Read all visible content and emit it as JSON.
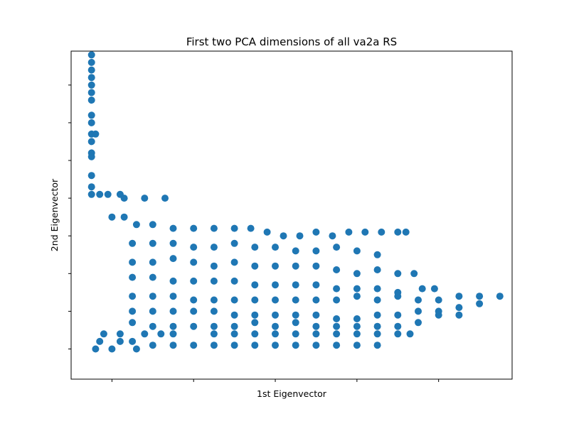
{
  "chart_data": {
    "type": "scatter",
    "title": "First two PCA dimensions of all va2a RS",
    "xlabel": "1st Eigenvector",
    "ylabel": "2nd Eigenvector",
    "xlim": [
      -1.0,
      9.8
    ],
    "ylim": [
      -0.8,
      7.9
    ],
    "xticks": [
      0,
      2,
      4,
      6,
      8
    ],
    "yticks": [
      0,
      1,
      2,
      3,
      4,
      5,
      6,
      7,
      8
    ],
    "tick_labels_visible": false,
    "grid": false,
    "legend": "none",
    "marker_color": "#1f77b4",
    "series": [
      {
        "values_note_omitted": false,
        "points": [
          [
            -0.5,
            7.8
          ],
          [
            -0.5,
            7.6
          ],
          [
            -0.5,
            7.4
          ],
          [
            -0.5,
            7.2
          ],
          [
            -0.5,
            7.0
          ],
          [
            -0.5,
            6.8
          ],
          [
            -0.5,
            6.6
          ],
          [
            -0.5,
            6.2
          ],
          [
            -0.5,
            6.0
          ],
          [
            -0.5,
            5.7
          ],
          [
            -0.5,
            5.5
          ],
          [
            -0.4,
            5.7
          ],
          [
            -0.5,
            5.2
          ],
          [
            -0.5,
            5.1
          ],
          [
            -0.5,
            4.6
          ],
          [
            -0.5,
            4.3
          ],
          [
            -0.5,
            4.1
          ],
          [
            -0.3,
            4.1
          ],
          [
            -0.1,
            4.1
          ],
          [
            0.2,
            4.1
          ],
          [
            0.3,
            4.0
          ],
          [
            0.8,
            4.0
          ],
          [
            1.3,
            4.0
          ],
          [
            0.0,
            3.5
          ],
          [
            0.3,
            3.5
          ],
          [
            0.6,
            3.3
          ],
          [
            1.0,
            3.3
          ],
          [
            1.5,
            3.2
          ],
          [
            2.0,
            3.2
          ],
          [
            2.5,
            3.2
          ],
          [
            3.0,
            3.2
          ],
          [
            3.4,
            3.2
          ],
          [
            3.8,
            3.1
          ],
          [
            4.2,
            3.0
          ],
          [
            4.6,
            3.0
          ],
          [
            5.0,
            3.1
          ],
          [
            5.4,
            3.0
          ],
          [
            5.8,
            3.1
          ],
          [
            6.2,
            3.1
          ],
          [
            6.6,
            3.1
          ],
          [
            7.0,
            3.1
          ],
          [
            7.2,
            3.1
          ],
          [
            0.5,
            2.8
          ],
          [
            1.0,
            2.8
          ],
          [
            1.5,
            2.8
          ],
          [
            2.0,
            2.7
          ],
          [
            2.5,
            2.7
          ],
          [
            3.0,
            2.8
          ],
          [
            3.5,
            2.7
          ],
          [
            4.0,
            2.7
          ],
          [
            4.5,
            2.6
          ],
          [
            5.0,
            2.6
          ],
          [
            5.5,
            2.7
          ],
          [
            6.0,
            2.6
          ],
          [
            6.5,
            2.5
          ],
          [
            0.5,
            2.3
          ],
          [
            1.0,
            2.3
          ],
          [
            1.5,
            2.4
          ],
          [
            2.0,
            2.3
          ],
          [
            2.5,
            2.2
          ],
          [
            3.0,
            2.3
          ],
          [
            3.5,
            2.2
          ],
          [
            4.0,
            2.2
          ],
          [
            4.5,
            2.2
          ],
          [
            5.0,
            2.2
          ],
          [
            5.5,
            2.1
          ],
          [
            6.0,
            2.0
          ],
          [
            6.5,
            2.1
          ],
          [
            7.0,
            2.0
          ],
          [
            7.4,
            2.0
          ],
          [
            0.5,
            1.9
          ],
          [
            1.0,
            1.9
          ],
          [
            1.5,
            1.8
          ],
          [
            2.0,
            1.8
          ],
          [
            2.5,
            1.8
          ],
          [
            3.0,
            1.8
          ],
          [
            3.5,
            1.7
          ],
          [
            4.0,
            1.7
          ],
          [
            4.5,
            1.7
          ],
          [
            5.0,
            1.7
          ],
          [
            5.5,
            1.6
          ],
          [
            6.0,
            1.6
          ],
          [
            6.5,
            1.6
          ],
          [
            7.0,
            1.5
          ],
          [
            7.6,
            1.6
          ],
          [
            7.9,
            1.6
          ],
          [
            0.5,
            1.4
          ],
          [
            1.0,
            1.4
          ],
          [
            1.5,
            1.4
          ],
          [
            2.0,
            1.3
          ],
          [
            2.5,
            1.3
          ],
          [
            3.0,
            1.3
          ],
          [
            3.5,
            1.3
          ],
          [
            4.0,
            1.3
          ],
          [
            4.5,
            1.3
          ],
          [
            5.0,
            1.3
          ],
          [
            5.5,
            1.3
          ],
          [
            6.0,
            1.4
          ],
          [
            6.5,
            1.3
          ],
          [
            7.0,
            1.4
          ],
          [
            7.5,
            1.3
          ],
          [
            8.0,
            1.3
          ],
          [
            8.5,
            1.4
          ],
          [
            9.0,
            1.4
          ],
          [
            9.5,
            1.4
          ],
          [
            0.5,
            1.0
          ],
          [
            1.0,
            1.0
          ],
          [
            1.5,
            1.0
          ],
          [
            2.0,
            1.0
          ],
          [
            2.5,
            1.0
          ],
          [
            3.0,
            0.9
          ],
          [
            3.5,
            0.9
          ],
          [
            4.0,
            0.9
          ],
          [
            4.5,
            0.9
          ],
          [
            5.0,
            0.9
          ],
          [
            5.5,
            0.8
          ],
          [
            6.0,
            0.8
          ],
          [
            6.5,
            0.9
          ],
          [
            7.0,
            0.9
          ],
          [
            7.5,
            1.0
          ],
          [
            8.0,
            1.0
          ],
          [
            8.5,
            1.1
          ],
          [
            9.0,
            1.2
          ],
          [
            0.5,
            0.7
          ],
          [
            1.0,
            0.6
          ],
          [
            1.5,
            0.6
          ],
          [
            2.0,
            0.6
          ],
          [
            2.5,
            0.6
          ],
          [
            3.0,
            0.6
          ],
          [
            3.5,
            0.7
          ],
          [
            4.0,
            0.6
          ],
          [
            4.5,
            0.7
          ],
          [
            5.0,
            0.6
          ],
          [
            5.5,
            0.6
          ],
          [
            6.0,
            0.6
          ],
          [
            6.5,
            0.6
          ],
          [
            7.0,
            0.6
          ],
          [
            7.5,
            0.7
          ],
          [
            8.0,
            0.9
          ],
          [
            8.5,
            0.9
          ],
          [
            -0.2,
            0.4
          ],
          [
            0.2,
            0.4
          ],
          [
            0.8,
            0.4
          ],
          [
            1.2,
            0.4
          ],
          [
            1.5,
            0.4
          ],
          [
            2.5,
            0.4
          ],
          [
            3.0,
            0.4
          ],
          [
            3.5,
            0.4
          ],
          [
            4.0,
            0.4
          ],
          [
            4.5,
            0.4
          ],
          [
            5.0,
            0.4
          ],
          [
            5.5,
            0.4
          ],
          [
            6.0,
            0.4
          ],
          [
            6.5,
            0.4
          ],
          [
            7.0,
            0.4
          ],
          [
            7.3,
            0.4
          ],
          [
            -0.3,
            0.2
          ],
          [
            0.2,
            0.2
          ],
          [
            0.5,
            0.2
          ],
          [
            1.0,
            0.1
          ],
          [
            1.5,
            0.1
          ],
          [
            2.0,
            0.1
          ],
          [
            2.5,
            0.1
          ],
          [
            3.0,
            0.1
          ],
          [
            3.5,
            0.1
          ],
          [
            4.0,
            0.1
          ],
          [
            4.5,
            0.1
          ],
          [
            5.0,
            0.1
          ],
          [
            5.5,
            0.1
          ],
          [
            6.0,
            0.1
          ],
          [
            6.5,
            0.1
          ],
          [
            -0.4,
            0.0
          ],
          [
            0.0,
            0.0
          ],
          [
            0.6,
            0.0
          ]
        ]
      }
    ]
  }
}
